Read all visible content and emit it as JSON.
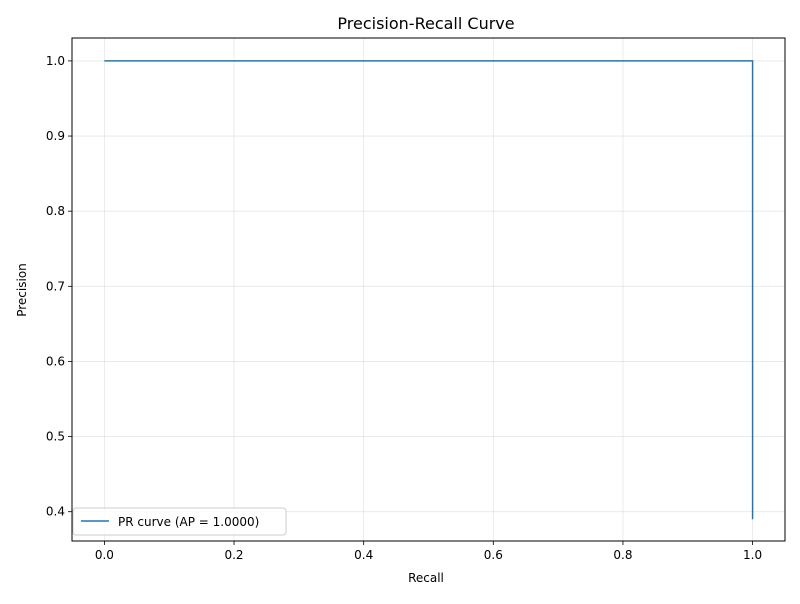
{
  "chart_data": {
    "type": "line",
    "title": "Precision-Recall Curve",
    "xlabel": "Recall",
    "ylabel": "Precision",
    "xlim": [
      -0.05,
      1.05
    ],
    "ylim": [
      0.361,
      1.0305
    ],
    "x_ticks": [
      0.0,
      0.2,
      0.4,
      0.6,
      0.8,
      1.0
    ],
    "x_tick_labels": [
      "0.0",
      "0.2",
      "0.4",
      "0.6",
      "0.8",
      "1.0"
    ],
    "y_ticks": [
      0.4,
      0.5,
      0.6,
      0.7,
      0.8,
      0.9,
      1.0
    ],
    "y_tick_labels": [
      "0.4",
      "0.5",
      "0.6",
      "0.7",
      "0.8",
      "0.9",
      "1.0"
    ],
    "grid": true,
    "legend_position": "lower-left",
    "series": [
      {
        "name": "PR curve (AP = 1.0000)",
        "color": "#1f77b4",
        "x": [
          0.0,
          1.0,
          1.0
        ],
        "y": [
          1.0,
          1.0,
          0.39
        ]
      }
    ]
  }
}
